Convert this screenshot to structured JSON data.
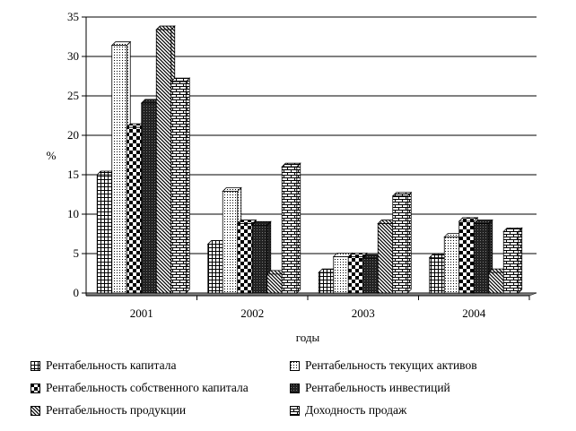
{
  "chart_data": {
    "type": "bar",
    "title": "",
    "xlabel": "годы",
    "ylabel": "%",
    "ylim": [
      0,
      35
    ],
    "yticks": [
      0,
      5,
      10,
      15,
      20,
      25,
      30,
      35
    ],
    "grid": "horizontal",
    "legend_position": "bottom",
    "categories": [
      "2001",
      "2002",
      "2003",
      "2004"
    ],
    "series": [
      {
        "name": "Рентабельность капитала",
        "values": [
          15,
          6.2,
          2.6,
          4.5
        ],
        "pattern": "grid"
      },
      {
        "name": "Рентабельность текущих активов",
        "values": [
          31.4,
          12.9,
          4.6,
          7.1
        ],
        "pattern": "dots"
      },
      {
        "name": "Рентабельность собственного капитала",
        "values": [
          21,
          8.8,
          4.6,
          9.1
        ],
        "pattern": "checker"
      },
      {
        "name": "Рентабельность инвестиций",
        "values": [
          24.1,
          8.6,
          4.4,
          8.8
        ],
        "pattern": "dense"
      },
      {
        "name": "Рентабельность продукции",
        "values": [
          33.4,
          2.4,
          8.8,
          2.6
        ],
        "pattern": "diagonal"
      },
      {
        "name": "Доходность продаж",
        "values": [
          26.8,
          16,
          12.3,
          7.8
        ],
        "pattern": "brick"
      }
    ]
  }
}
